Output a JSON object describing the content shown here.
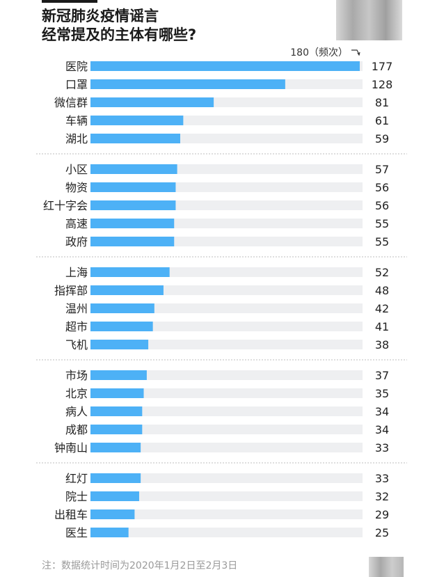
{
  "title_lines": [
    "新冠肺炎疫情谣言",
    "经常提及的主体有哪些?"
  ],
  "axis_max_label": "180（频次）",
  "note": "注：数据统计时间为2020年1月2日至2月3日",
  "colors": {
    "bar": "#4db1f6",
    "track": "#eeeff1",
    "divider": "#bdbdbd"
  },
  "chart_data": {
    "type": "bar",
    "orientation": "horizontal",
    "xlim": [
      0,
      180
    ],
    "groups": [
      {
        "categories": [
          "医院",
          "口罩",
          "微信群",
          "车辆",
          "湖北"
        ],
        "values": [
          177,
          128,
          81,
          61,
          59
        ]
      },
      {
        "categories": [
          "小区",
          "物资",
          "红十字会",
          "高速",
          "政府"
        ],
        "values": [
          57,
          56,
          56,
          55,
          55
        ]
      },
      {
        "categories": [
          "上海",
          "指挥部",
          "温州",
          "超市",
          "飞机"
        ],
        "values": [
          52,
          48,
          42,
          41,
          38
        ]
      },
      {
        "categories": [
          "市场",
          "北京",
          "病人",
          "成都",
          "钟南山"
        ],
        "values": [
          37,
          35,
          34,
          34,
          33
        ]
      },
      {
        "categories": [
          "红灯",
          "院士",
          "出租车",
          "医生"
        ],
        "values": [
          33,
          32,
          29,
          25
        ]
      }
    ]
  }
}
